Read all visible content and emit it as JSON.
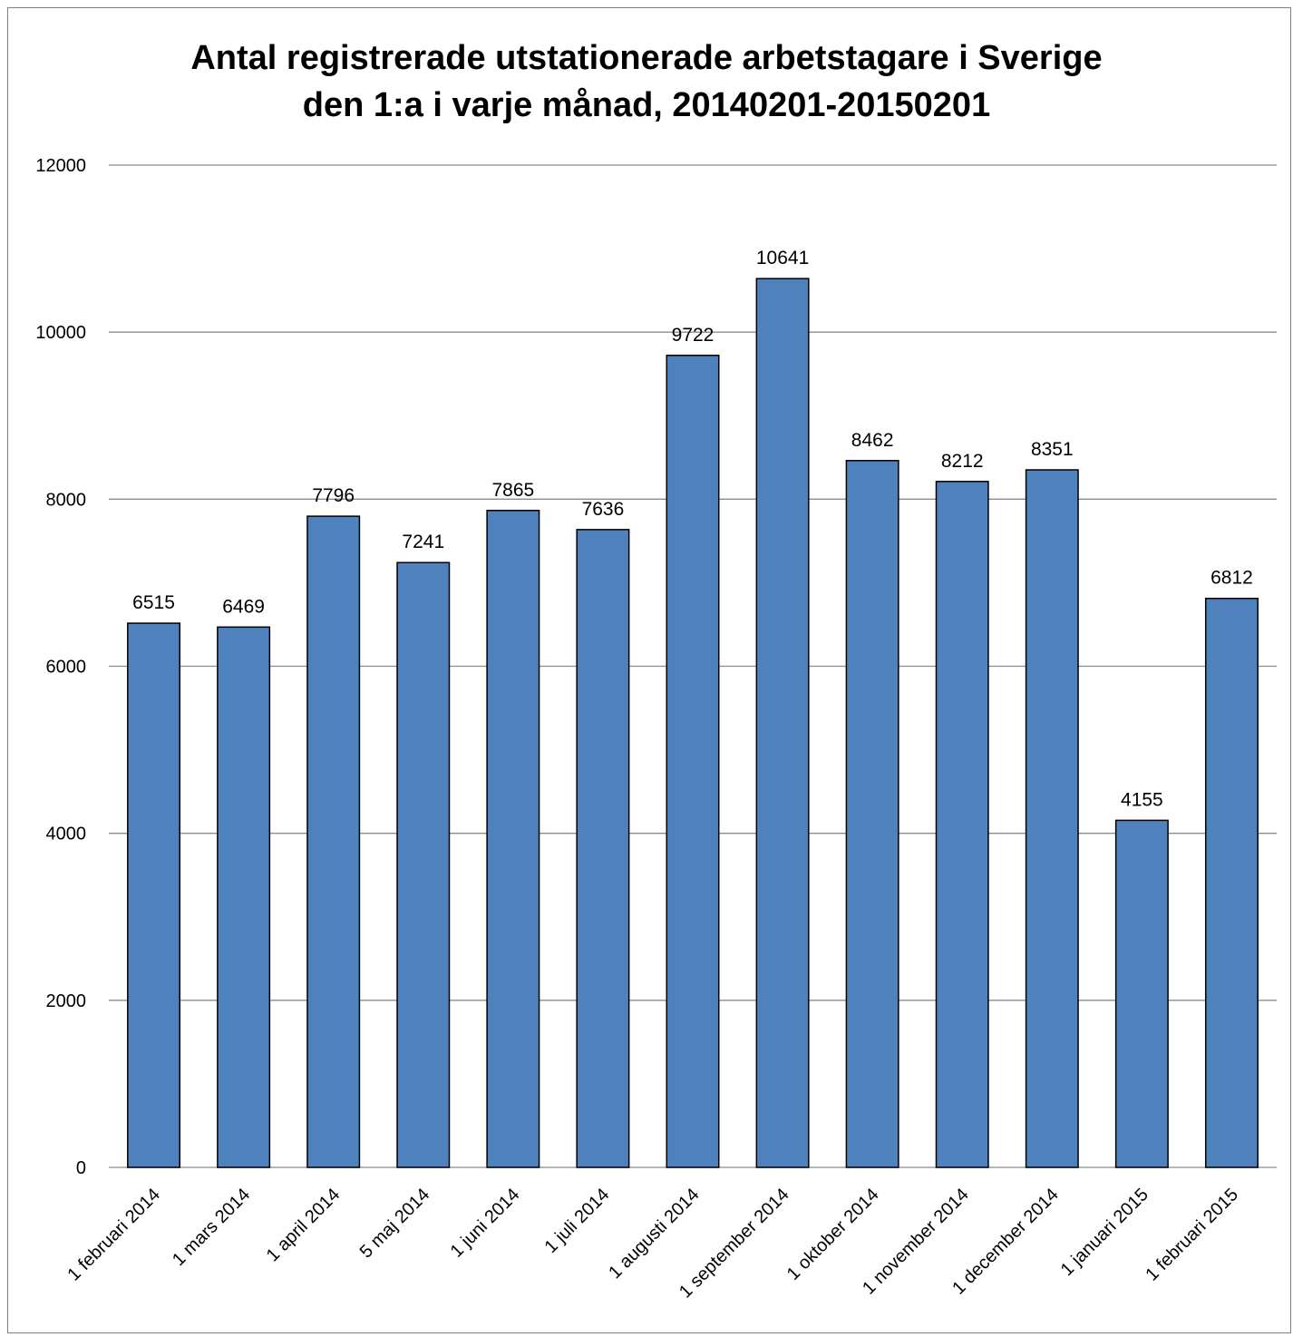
{
  "chart_data": {
    "type": "bar",
    "title_lines": [
      "Antal registrerade utstationerade arbetstagare i Sverige",
      "den 1:a i varje månad, 20140201-20150201"
    ],
    "categories": [
      "1 februari 2014",
      "1 mars 2014",
      "1 april 2014",
      "5 maj 2014",
      "1 juni 2014",
      "1 juli 2014",
      "1 augusti 2014",
      "1 september 2014",
      "1 oktober 2014",
      "1 november 2014",
      "1 december 2014",
      "1 januari 2015",
      "1 februari 2015"
    ],
    "values": [
      6515,
      6469,
      7796,
      7241,
      7865,
      7636,
      9722,
      10641,
      8462,
      8212,
      8351,
      4155,
      6812
    ],
    "ylim": [
      0,
      12000
    ],
    "yticks": [
      0,
      2000,
      4000,
      6000,
      8000,
      10000,
      12000
    ],
    "grid": true,
    "legend": "none",
    "colors": {
      "bar_fill": "#4f81bd",
      "bar_stroke": "#000000",
      "gridline": "#8c8c8c"
    }
  }
}
